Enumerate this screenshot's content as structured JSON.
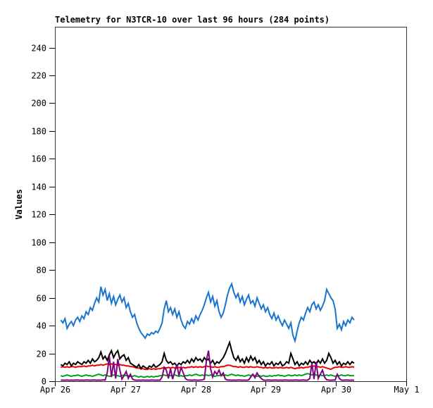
{
  "chart_data": {
    "type": "line",
    "title": "Telemetry for N3TCR-10 over last 96 hours (284 points)",
    "ylabel": "Values",
    "grid": false,
    "legend_position": "none",
    "frame_color": "#333333",
    "background_color": "#ffffff",
    "y_axis": {
      "min": 0,
      "max": 255,
      "tick_labels": [
        "0",
        "20",
        "40",
        "60",
        "80",
        "100",
        "120",
        "140",
        "160",
        "180",
        "200",
        "220",
        "240"
      ],
      "tick_values": [
        0,
        20,
        40,
        60,
        80,
        100,
        120,
        140,
        160,
        180,
        200,
        220,
        240
      ]
    },
    "x_axis": {
      "min_hour": 0,
      "max_hour": 120,
      "ticks": [
        {
          "hour": 0,
          "label": "Apr 26"
        },
        {
          "hour": 24,
          "label": "Apr 27"
        },
        {
          "hour": 48,
          "label": "Apr 28"
        },
        {
          "hour": 72,
          "label": "Apr 29"
        },
        {
          "hour": 96,
          "label": "Apr 30"
        },
        {
          "hour": 120,
          "label": "May 1"
        }
      ]
    },
    "series": [
      {
        "name": "green",
        "color": "#00A020",
        "stroke_width": 2,
        "x_start_hour": 2,
        "x_end_hour": 102.2,
        "values": [
          4,
          3.5,
          4,
          4.5,
          4,
          3.5,
          4,
          4,
          4.5,
          4,
          3.5,
          4,
          4.5,
          4,
          4,
          3.5,
          4,
          4.5,
          5,
          4.5,
          4,
          4.5,
          4,
          3.5,
          4,
          4.5,
          4,
          4,
          3.5,
          4,
          4.5,
          4,
          4,
          3.5,
          3.5,
          4,
          3.5,
          3,
          3.5,
          3,
          3,
          3.5,
          3,
          3.5,
          3,
          3.5,
          3.5,
          4,
          4,
          4.5,
          4,
          4.5,
          4,
          4,
          4.5,
          4,
          3.5,
          4,
          3.5,
          4,
          4,
          4.5,
          4,
          4.5,
          5,
          4.5,
          4,
          4.5,
          4,
          4.5,
          4,
          4.5,
          4,
          3.5,
          4,
          4,
          4.5,
          4,
          4.5,
          4,
          4.5,
          5,
          4.5,
          4,
          4.5,
          4,
          4,
          3.5,
          4,
          4.5,
          4,
          4.5,
          4,
          3.5,
          4,
          3.5,
          4,
          3.5,
          3.5,
          4,
          3.5,
          4,
          4,
          4.5,
          4,
          4,
          3.5,
          4,
          4.5,
          4,
          4,
          4.5,
          4,
          4.5,
          4,
          4.5,
          5,
          5.5,
          5,
          4.5,
          5,
          4.5,
          4,
          4.5,
          4,
          4,
          4.5,
          4,
          4.5,
          4,
          3.5,
          4,
          4,
          4.5,
          4,
          4,
          4.5,
          4,
          4,
          4
        ]
      },
      {
        "name": "red",
        "color": "#EE0000",
        "stroke_width": 2,
        "x_start_hour": 2,
        "x_end_hour": 102.2,
        "values": [
          10,
          10.5,
          10,
          10.5,
          10,
          10.5,
          10.5,
          10,
          10.5,
          10.5,
          10.5,
          11,
          10.5,
          11,
          11,
          11.5,
          11,
          11.5,
          11.5,
          12,
          11.5,
          12,
          12.5,
          12,
          12.5,
          12,
          12,
          11.5,
          12,
          11.5,
          11.5,
          11,
          11,
          10.5,
          10.5,
          10,
          9.5,
          9.5,
          9,
          9,
          8.5,
          8.5,
          9,
          8.5,
          9,
          8.5,
          9,
          9,
          9.5,
          10,
          9.5,
          10,
          9.5,
          10,
          9.5,
          9.5,
          10,
          9.5,
          10,
          9.5,
          10,
          10,
          10.5,
          10,
          10.5,
          10,
          10.5,
          10,
          10.5,
          11,
          10.5,
          10.5,
          10,
          10.5,
          10,
          10,
          10.5,
          10.5,
          11,
          11.5,
          11.5,
          11,
          10.5,
          10.5,
          10,
          10.5,
          10,
          10,
          10.5,
          10,
          10.5,
          10,
          10,
          10.5,
          10,
          10,
          9.5,
          10,
          9.5,
          10,
          9.5,
          9.5,
          10,
          9.5,
          10,
          9.5,
          9.5,
          10,
          9.5,
          10,
          9.5,
          9,
          9.5,
          9.5,
          10,
          9.5,
          10,
          10,
          10.5,
          10.5,
          11,
          10.5,
          10.5,
          10,
          10.5,
          10,
          9.5,
          9,
          8.5,
          9.5,
          10,
          10,
          10.5,
          10,
          10,
          10.5,
          10,
          10,
          10.5,
          10
        ]
      },
      {
        "name": "black",
        "color": "#000000",
        "stroke_width": 2,
        "x_start_hour": 2,
        "x_end_hour": 102.2,
        "values": [
          12,
          11,
          13,
          12,
          14,
          11,
          13,
          12,
          14,
          13,
          12,
          14,
          13,
          15,
          13,
          16,
          14,
          15,
          17,
          21,
          16,
          18,
          15,
          19,
          22,
          17,
          20,
          22,
          16,
          18,
          19,
          15,
          17,
          13,
          12,
          11,
          10,
          12,
          9,
          11,
          10,
          9,
          11,
          10,
          12,
          10,
          11,
          12,
          14,
          20,
          15,
          13,
          14,
          12,
          13,
          11,
          13,
          12,
          14,
          13,
          15,
          13,
          16,
          14,
          17,
          15,
          16,
          14,
          17,
          15,
          16,
          13,
          15,
          12,
          14,
          13,
          15,
          17,
          20,
          24,
          28,
          22,
          17,
          15,
          18,
          14,
          16,
          13,
          17,
          14,
          18,
          15,
          17,
          13,
          15,
          12,
          14,
          11,
          13,
          12,
          14,
          11,
          13,
          12,
          14,
          11,
          12,
          14,
          13,
          20,
          16,
          12,
          14,
          11,
          13,
          12,
          14,
          12,
          15,
          13,
          14,
          12,
          15,
          13,
          16,
          13,
          15,
          20,
          17,
          13,
          15,
          12,
          14,
          11,
          13,
          12,
          14,
          12,
          14,
          13
        ]
      },
      {
        "name": "purple",
        "color": "#800080",
        "stroke_width": 2,
        "x_start_hour": 2,
        "x_end_hour": 102.2,
        "values": [
          0.7,
          0.8,
          0.7,
          0.9,
          0.7,
          0.8,
          0.7,
          0.8,
          0.9,
          0.7,
          0.8,
          0.7,
          0.9,
          0.8,
          0.7,
          0.8,
          0.9,
          0.7,
          0.8,
          0.7,
          1,
          0.8,
          6,
          18,
          3,
          14,
          2,
          16,
          8,
          1.5,
          4,
          7,
          2,
          5,
          1.5,
          0.8,
          0.7,
          0.8,
          0.7,
          0.9,
          0.7,
          0.8,
          0.7,
          0.9,
          0.8,
          0.7,
          0.8,
          0.7,
          3,
          10,
          8,
          2,
          9,
          1.5,
          7,
          12,
          4,
          10,
          6,
          2,
          0.9,
          0.8,
          0.7,
          0.9,
          0.8,
          0.7,
          0.8,
          0.9,
          1.5,
          15,
          22,
          9,
          3,
          7,
          5,
          8,
          4,
          6,
          1.5,
          0.8,
          0.9,
          0.7,
          0.8,
          0.7,
          0.9,
          0.8,
          0.7,
          0.8,
          0.7,
          0.9,
          3,
          5,
          2.5,
          6,
          3.5,
          2,
          0.8,
          0.7,
          0.9,
          0.8,
          0.7,
          0.8,
          0.9,
          0.7,
          0.8,
          0.7,
          0.9,
          0.8,
          0.7,
          0.8,
          0.7,
          0.9,
          0.8,
          0.7,
          0.8,
          0.9,
          0.7,
          0.8,
          2,
          13,
          1.5,
          14,
          2,
          5,
          8,
          3,
          1,
          0.8,
          0.7,
          0.9,
          0.8,
          5,
          2,
          0.8,
          0.7,
          0.9,
          0.8,
          0.7,
          0.8,
          0.7
        ]
      },
      {
        "name": "blue",
        "color": "#1874CD",
        "stroke_width": 2,
        "x_start_hour": 2,
        "x_end_hour": 102.2,
        "values": [
          44,
          42,
          45,
          38,
          41,
          43,
          40,
          44,
          46,
          43,
          47,
          45,
          50,
          48,
          53,
          51,
          56,
          60,
          57,
          68,
          62,
          66,
          58,
          63,
          56,
          61,
          55,
          59,
          62,
          57,
          60,
          53,
          56,
          50,
          46,
          48,
          42,
          38,
          35,
          33,
          31,
          34,
          33,
          35,
          34,
          36,
          35,
          38,
          42,
          52,
          58,
          50,
          53,
          48,
          52,
          46,
          50,
          44,
          40,
          38,
          43,
          41,
          45,
          42,
          47,
          44,
          48,
          51,
          55,
          60,
          64,
          57,
          61,
          54,
          58,
          50,
          46,
          49,
          55,
          62,
          67,
          70,
          64,
          60,
          63,
          57,
          61,
          55,
          59,
          62,
          56,
          58,
          54,
          60,
          56,
          52,
          55,
          50,
          53,
          48,
          45,
          49,
          44,
          47,
          43,
          40,
          44,
          41,
          38,
          42,
          33,
          29,
          36,
          42,
          46,
          44,
          49,
          53,
          50,
          55,
          57,
          52,
          55,
          51,
          54,
          58,
          66,
          63,
          60,
          58,
          52,
          38,
          41,
          37,
          43,
          40,
          44,
          42,
          46,
          44
        ]
      }
    ]
  }
}
